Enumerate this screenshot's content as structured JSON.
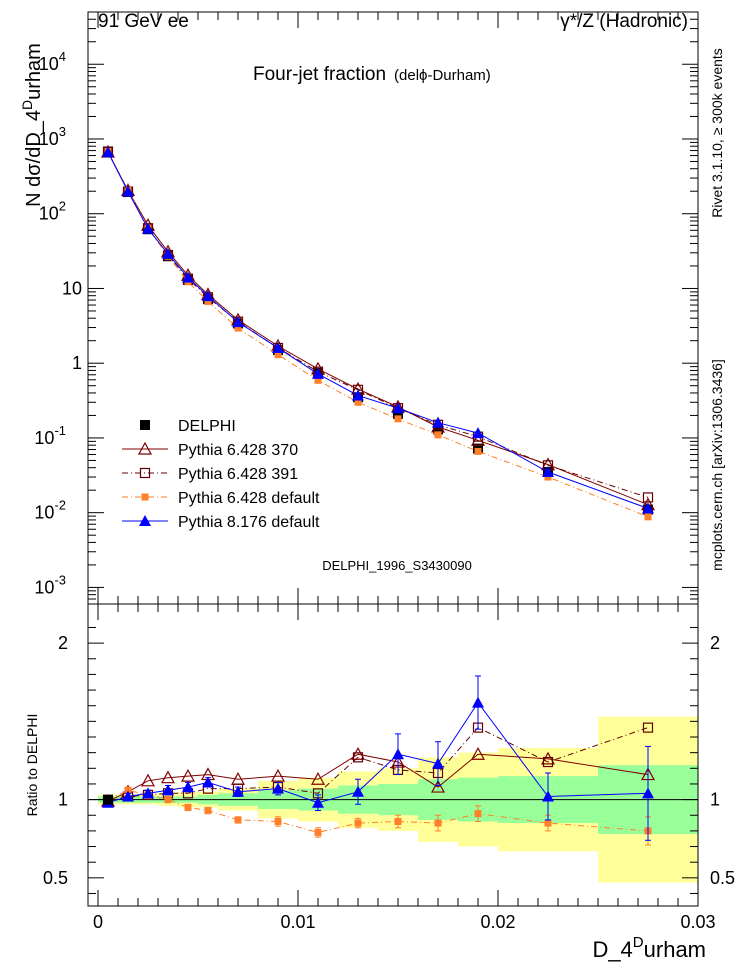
{
  "header": {
    "left": "91 GeV ee",
    "right": "γ*/Z (Hadronic)"
  },
  "side": {
    "rivet": "Rivet 3.1.10, ≥ 300k events",
    "mcplots": "mcplots.cern.ch [arXiv:1306.3436]"
  },
  "colors": {
    "delphi": "#000000",
    "p370": "#800000",
    "p391": "#660000",
    "pdefault": "#ff7f2a",
    "p8176": "#0000ff",
    "band_outer": "#ffff99",
    "band_inner": "#99ff99"
  },
  "chart_data": [
    {
      "type": "line",
      "title": "Four-jet fraction",
      "title_suffix": "(delϕ-Durham)",
      "watermark": "DELPHI_1996_S3430090",
      "ylabel": "N dσ/dD_4^Durham",
      "xlabel": "D_4^Durham",
      "yscale": "log",
      "xlim": [
        -0.0005,
        0.03
      ],
      "ylim": [
        0.0006,
        50000
      ],
      "yticks": [
        {
          "v": 0.001,
          "label": "10",
          "exp": "-3"
        },
        {
          "v": 0.01,
          "label": "10",
          "exp": "-2"
        },
        {
          "v": 0.1,
          "label": "10",
          "exp": "-1"
        },
        {
          "v": 1,
          "label": "1",
          "exp": ""
        },
        {
          "v": 10,
          "label": "10",
          "exp": ""
        },
        {
          "v": 100,
          "label": "10",
          "exp": "2"
        },
        {
          "v": 1000,
          "label": "10",
          "exp": "3"
        },
        {
          "v": 10000,
          "label": "10",
          "exp": "4"
        }
      ],
      "x": [
        0.0005,
        0.0015,
        0.0025,
        0.0035,
        0.0045,
        0.0055,
        0.007,
        0.009,
        0.011,
        0.013,
        0.015,
        0.017,
        0.019,
        0.0225,
        0.0275
      ],
      "series": [
        {
          "name": "DELPHI",
          "key": "delphi",
          "values": [
            680,
            195,
            62,
            27,
            13,
            7.2,
            3.4,
            1.5,
            0.74,
            0.35,
            0.21,
            0.13,
            0.072,
            0.035,
            0.011
          ]
        },
        {
          "name": "Pythia 6.428 370",
          "key": "p370",
          "values": [
            670,
            205,
            70,
            31,
            15,
            8.3,
            3.8,
            1.7,
            0.84,
            0.45,
            0.26,
            0.14,
            0.093,
            0.044,
            0.0128
          ]
        },
        {
          "name": "Pythia 6.428 391",
          "key": "p391",
          "values": [
            670,
            198,
            64,
            28,
            13.5,
            7.6,
            3.6,
            1.6,
            0.77,
            0.44,
            0.25,
            0.15,
            0.104,
            0.043,
            0.016
          ]
        },
        {
          "name": "Pythia 6.428 default",
          "key": "pdefault",
          "values": [
            680,
            205,
            64,
            27,
            12.3,
            6.7,
            2.95,
            1.3,
            0.59,
            0.3,
            0.18,
            0.11,
            0.066,
            0.03,
            0.0088
          ]
        },
        {
          "name": "Pythia 8.176 default",
          "key": "p8176",
          "values": [
            665,
            198,
            63,
            29,
            14,
            7.9,
            3.55,
            1.6,
            0.72,
            0.37,
            0.25,
            0.16,
            0.116,
            0.035,
            0.0114
          ]
        }
      ]
    },
    {
      "type": "line",
      "ylabel": "Ratio to DELPHI",
      "xlabel": "D_4^Durham",
      "xlim": [
        -0.0005,
        0.03
      ],
      "ylim": [
        0.32,
        2.25
      ],
      "yticks": [
        {
          "v": 0.5,
          "label": "0.5"
        },
        {
          "v": 1,
          "label": "1"
        },
        {
          "v": 2,
          "label": "2"
        }
      ],
      "xticks": [
        {
          "v": 0,
          "label": "0"
        },
        {
          "v": 0.01,
          "label": "0.01"
        },
        {
          "v": 0.02,
          "label": "0.02"
        },
        {
          "v": 0.03,
          "label": "0.03"
        }
      ],
      "bins": [
        0,
        0.001,
        0.002,
        0.003,
        0.004,
        0.005,
        0.006,
        0.008,
        0.01,
        0.012,
        0.014,
        0.016,
        0.018,
        0.02,
        0.025,
        0.03
      ],
      "band_outer": [
        0.03,
        0.03,
        0.03,
        0.04,
        0.05,
        0.05,
        0.07,
        0.12,
        0.14,
        0.18,
        0.2,
        0.27,
        0.3,
        0.33,
        0.53
      ],
      "band_inner": [
        0.02,
        0.02,
        0.02,
        0.02,
        0.02,
        0.03,
        0.04,
        0.06,
        0.07,
        0.09,
        0.1,
        0.13,
        0.14,
        0.15,
        0.22
      ],
      "x": [
        0.0005,
        0.0015,
        0.0025,
        0.0035,
        0.0045,
        0.0055,
        0.007,
        0.009,
        0.011,
        0.013,
        0.015,
        0.017,
        0.019,
        0.0225,
        0.0275
      ],
      "series": [
        {
          "name": "Pythia 6.428 370",
          "key": "p370",
          "values": [
            0.99,
            1.05,
            1.12,
            1.14,
            1.15,
            1.16,
            1.13,
            1.15,
            1.13,
            1.29,
            1.24,
            1.08,
            1.29,
            1.26,
            1.16
          ]
        },
        {
          "name": "Pythia 6.428 391",
          "key": "p391",
          "values": [
            0.99,
            1.02,
            1.03,
            1.04,
            1.04,
            1.07,
            1.07,
            1.08,
            1.04,
            1.27,
            1.19,
            1.17,
            1.46,
            1.24,
            1.46
          ]
        },
        {
          "name": "Pythia 6.428 default",
          "key": "pdefault",
          "values": [
            1.0,
            1.06,
            1.03,
            1.0,
            0.95,
            0.93,
            0.87,
            0.86,
            0.79,
            0.85,
            0.86,
            0.85,
            0.91,
            0.85,
            0.8
          ]
        },
        {
          "name": "Pythia 8.176 default",
          "key": "p8176",
          "values": [
            0.98,
            1.02,
            1.04,
            1.06,
            1.08,
            1.11,
            1.05,
            1.07,
            0.98,
            1.05,
            1.29,
            1.23,
            1.62,
            1.02,
            1.04
          ]
        }
      ],
      "errors_p8176": [
        0.01,
        0.02,
        0.02,
        0.03,
        0.03,
        0.03,
        0.03,
        0.04,
        0.05,
        0.08,
        0.13,
        0.14,
        0.17,
        0.15,
        0.3
      ],
      "errors_pdefault": [
        0.01,
        0.01,
        0.02,
        0.02,
        0.02,
        0.02,
        0.02,
        0.03,
        0.03,
        0.03,
        0.04,
        0.05,
        0.05,
        0.05,
        0.09
      ]
    }
  ]
}
